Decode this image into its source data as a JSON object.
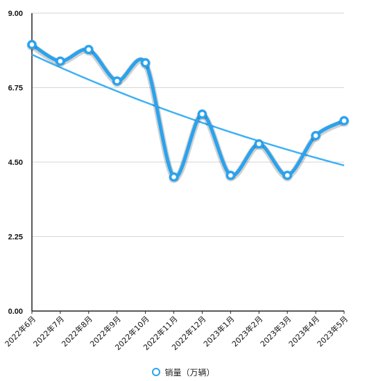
{
  "chart_data": {
    "type": "line",
    "categories": [
      "2022年6月",
      "2022年7月",
      "2022年8月",
      "2022年9月",
      "2022年10月",
      "2022年11月",
      "2022年12月",
      "2023年1月",
      "2023年2月",
      "2023年3月",
      "2023年4月",
      "2023年5月"
    ],
    "series": [
      {
        "name": "销量（万辆）",
        "values": [
          8.05,
          7.55,
          7.9,
          6.95,
          7.5,
          4.05,
          5.95,
          4.1,
          5.05,
          4.1,
          5.3,
          5.75
        ],
        "color": "#2aa3ee"
      }
    ],
    "trendline": {
      "type": "exponential",
      "start": 7.75,
      "end": 4.4,
      "color": "#3db1f5"
    },
    "ylim": [
      0,
      9
    ],
    "yticks": [
      "0.00",
      "2.25",
      "4.50",
      "6.75",
      "9.00"
    ],
    "grid": true,
    "legend_position": "bottom"
  }
}
